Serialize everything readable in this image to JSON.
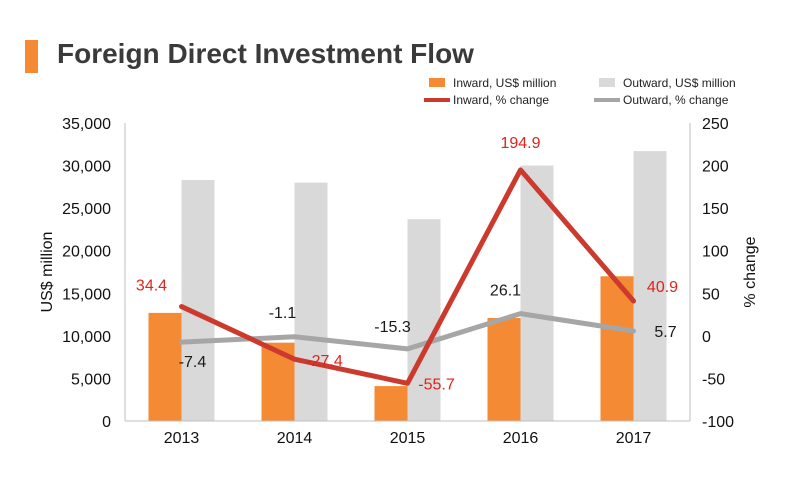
{
  "title": "Foreign Direct Investment Flow",
  "colors": {
    "title_accent": "#F58A35",
    "inward_bar": "#F58A35",
    "outward_bar": "#D9D9D9",
    "inward_line": "#CC3A2E",
    "outward_line": "#A6A6A6",
    "inward_label": "#E0231C",
    "outward_label": "#1a1a1a",
    "axis_text": "#111111"
  },
  "chart_data": {
    "type": "bar",
    "title": "Foreign Direct Investment Flow",
    "categories": [
      "2013",
      "2014",
      "2015",
      "2016",
      "2017"
    ],
    "xlabel": "",
    "ylabel": "US$ million",
    "y2label": "% change",
    "ylim": [
      0,
      35000
    ],
    "y2lim": [
      -100,
      250
    ],
    "y_ticks": [
      "0",
      "5,000",
      "10,000",
      "15,000",
      "20,000",
      "25,000",
      "30,000",
      "35,000"
    ],
    "y_tick_values": [
      0,
      5000,
      10000,
      15000,
      20000,
      25000,
      30000,
      35000
    ],
    "y2_ticks": [
      "-100",
      "-50",
      "0",
      "50",
      "100",
      "150",
      "200",
      "250"
    ],
    "y2_tick_values": [
      -100,
      -50,
      0,
      50,
      100,
      150,
      200,
      250
    ],
    "grid": false,
    "legend_position": "top-right",
    "series": [
      {
        "name": "Inward, US$ million",
        "kind": "bar",
        "axis": "left",
        "values": [
          12700,
          9200,
          4100,
          12100,
          17000
        ]
      },
      {
        "name": "Outward, US$ million",
        "kind": "bar",
        "axis": "left",
        "values": [
          28300,
          28000,
          23700,
          30000,
          31700
        ]
      },
      {
        "name": "Inward, % change",
        "kind": "line",
        "axis": "right",
        "values": [
          34.4,
          -27.4,
          -55.7,
          194.9,
          40.9
        ],
        "labels": [
          "34.4",
          "-27.4",
          "-55.7",
          "194.9",
          "40.9"
        ]
      },
      {
        "name": "Outward, % change",
        "kind": "line",
        "axis": "right",
        "values": [
          -7.4,
          -1.1,
          -15.3,
          26.1,
          5.7
        ],
        "labels": [
          "-7.4",
          "-1.1",
          "-15.3",
          "26.1",
          "5.7"
        ]
      }
    ]
  }
}
